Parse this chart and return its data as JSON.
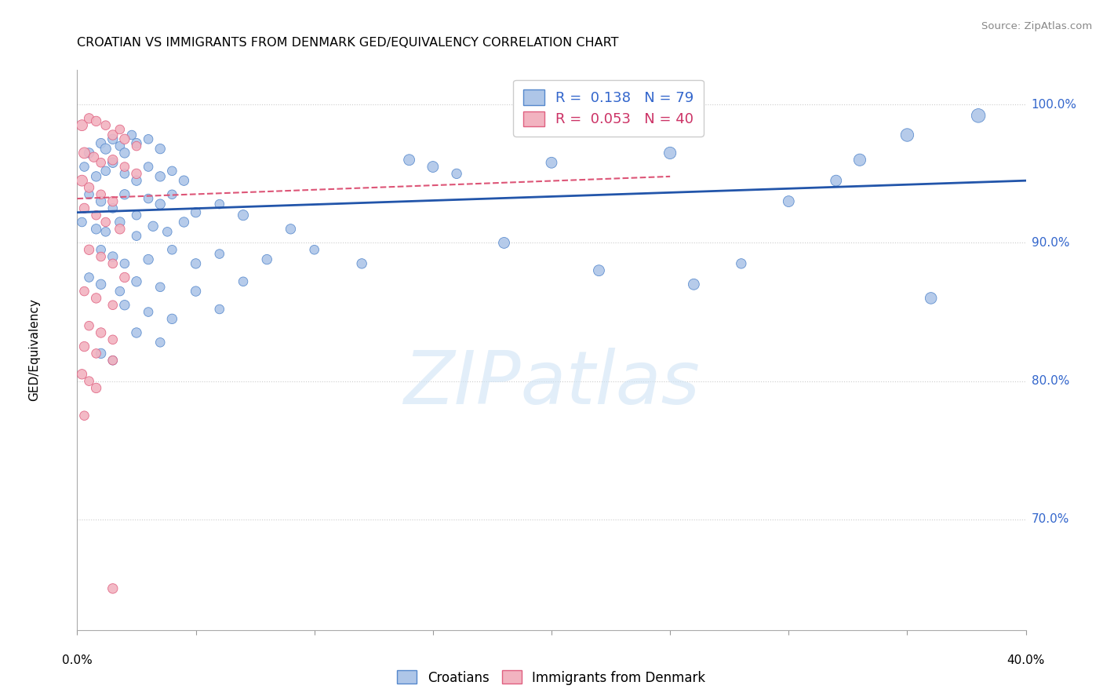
{
  "title": "CROATIAN VS IMMIGRANTS FROM DENMARK GED/EQUIVALENCY CORRELATION CHART",
  "source": "Source: ZipAtlas.com",
  "ylabel": "GED/Equivalency",
  "watermark": "ZIPatlas",
  "legend_blue_r": "0.138",
  "legend_blue_n": "79",
  "legend_pink_r": "0.053",
  "legend_pink_n": "40",
  "blue_fill": "#aec6e8",
  "pink_fill": "#f2b3c0",
  "blue_edge": "#5588cc",
  "pink_edge": "#e06080",
  "blue_line_color": "#2255aa",
  "pink_line_color": "#dd5577",
  "blue_scatter": [
    [
      0.5,
      96.5
    ],
    [
      1.0,
      97.2
    ],
    [
      1.2,
      96.8
    ],
    [
      1.5,
      97.5
    ],
    [
      1.8,
      97.0
    ],
    [
      2.0,
      96.5
    ],
    [
      2.3,
      97.8
    ],
    [
      2.5,
      97.2
    ],
    [
      3.0,
      97.5
    ],
    [
      3.5,
      96.8
    ],
    [
      0.3,
      95.5
    ],
    [
      0.8,
      94.8
    ],
    [
      1.2,
      95.2
    ],
    [
      1.5,
      95.8
    ],
    [
      2.0,
      95.0
    ],
    [
      2.5,
      94.5
    ],
    [
      3.0,
      95.5
    ],
    [
      3.5,
      94.8
    ],
    [
      4.0,
      95.2
    ],
    [
      4.5,
      94.5
    ],
    [
      0.5,
      93.5
    ],
    [
      1.0,
      93.0
    ],
    [
      1.5,
      92.5
    ],
    [
      2.0,
      93.5
    ],
    [
      2.5,
      92.0
    ],
    [
      3.0,
      93.2
    ],
    [
      3.5,
      92.8
    ],
    [
      4.0,
      93.5
    ],
    [
      5.0,
      92.2
    ],
    [
      6.0,
      92.8
    ],
    [
      0.2,
      91.5
    ],
    [
      0.8,
      91.0
    ],
    [
      1.2,
      90.8
    ],
    [
      1.8,
      91.5
    ],
    [
      2.5,
      90.5
    ],
    [
      3.2,
      91.2
    ],
    [
      3.8,
      90.8
    ],
    [
      4.5,
      91.5
    ],
    [
      7.0,
      92.0
    ],
    [
      9.0,
      91.0
    ],
    [
      1.0,
      89.5
    ],
    [
      1.5,
      89.0
    ],
    [
      2.0,
      88.5
    ],
    [
      3.0,
      88.8
    ],
    [
      4.0,
      89.5
    ],
    [
      5.0,
      88.5
    ],
    [
      6.0,
      89.2
    ],
    [
      8.0,
      88.8
    ],
    [
      10.0,
      89.5
    ],
    [
      12.0,
      88.5
    ],
    [
      0.5,
      87.5
    ],
    [
      1.0,
      87.0
    ],
    [
      1.8,
      86.5
    ],
    [
      2.5,
      87.2
    ],
    [
      3.5,
      86.8
    ],
    [
      5.0,
      86.5
    ],
    [
      7.0,
      87.2
    ],
    [
      2.0,
      85.5
    ],
    [
      3.0,
      85.0
    ],
    [
      4.0,
      84.5
    ],
    [
      6.0,
      85.2
    ],
    [
      2.5,
      83.5
    ],
    [
      3.5,
      82.8
    ],
    [
      1.0,
      82.0
    ],
    [
      1.5,
      81.5
    ],
    [
      15.0,
      95.5
    ],
    [
      20.0,
      95.8
    ],
    [
      25.0,
      96.5
    ],
    [
      30.0,
      93.0
    ],
    [
      32.0,
      94.5
    ],
    [
      33.0,
      96.0
    ],
    [
      35.0,
      97.8
    ],
    [
      38.0,
      99.2
    ],
    [
      18.0,
      90.0
    ],
    [
      22.0,
      88.0
    ],
    [
      26.0,
      87.0
    ],
    [
      28.0,
      88.5
    ],
    [
      36.0,
      86.0
    ],
    [
      14.0,
      96.0
    ],
    [
      16.0,
      95.0
    ]
  ],
  "pink_scatter": [
    [
      0.2,
      98.5
    ],
    [
      0.5,
      99.0
    ],
    [
      0.8,
      98.8
    ],
    [
      1.2,
      98.5
    ],
    [
      1.5,
      97.8
    ],
    [
      1.8,
      98.2
    ],
    [
      2.0,
      97.5
    ],
    [
      2.5,
      97.0
    ],
    [
      0.3,
      96.5
    ],
    [
      0.7,
      96.2
    ],
    [
      1.0,
      95.8
    ],
    [
      1.5,
      96.0
    ],
    [
      2.0,
      95.5
    ],
    [
      2.5,
      95.0
    ],
    [
      0.2,
      94.5
    ],
    [
      0.5,
      94.0
    ],
    [
      1.0,
      93.5
    ],
    [
      1.5,
      93.0
    ],
    [
      0.3,
      92.5
    ],
    [
      0.8,
      92.0
    ],
    [
      1.2,
      91.5
    ],
    [
      1.8,
      91.0
    ],
    [
      0.5,
      89.5
    ],
    [
      1.0,
      89.0
    ],
    [
      1.5,
      88.5
    ],
    [
      2.0,
      87.5
    ],
    [
      0.3,
      86.5
    ],
    [
      0.8,
      86.0
    ],
    [
      1.5,
      85.5
    ],
    [
      0.5,
      84.0
    ],
    [
      1.0,
      83.5
    ],
    [
      1.5,
      83.0
    ],
    [
      0.3,
      82.5
    ],
    [
      0.8,
      82.0
    ],
    [
      1.5,
      81.5
    ],
    [
      0.2,
      80.5
    ],
    [
      0.5,
      80.0
    ],
    [
      0.8,
      79.5
    ],
    [
      0.3,
      77.5
    ],
    [
      1.5,
      65.0
    ]
  ],
  "blue_sizes": [
    80,
    80,
    90,
    80,
    70,
    80,
    70,
    80,
    70,
    80,
    70,
    80,
    70,
    80,
    70,
    80,
    70,
    80,
    70,
    80,
    70,
    80,
    70,
    80,
    70,
    70,
    80,
    70,
    80,
    70,
    70,
    80,
    70,
    80,
    70,
    80,
    70,
    80,
    90,
    80,
    70,
    80,
    70,
    80,
    70,
    80,
    70,
    80,
    70,
    80,
    70,
    80,
    70,
    80,
    70,
    80,
    70,
    80,
    70,
    80,
    70,
    80,
    70,
    80,
    70,
    100,
    100,
    120,
    100,
    100,
    120,
    140,
    160,
    100,
    100,
    100,
    80,
    110,
    100,
    80
  ],
  "pink_sizes": [
    100,
    80,
    80,
    70,
    80,
    70,
    80,
    70,
    100,
    80,
    70,
    80,
    70,
    80,
    100,
    80,
    70,
    80,
    80,
    70,
    70,
    80,
    80,
    70,
    70,
    80,
    70,
    80,
    70,
    70,
    80,
    70,
    80,
    70,
    70,
    80,
    70,
    80,
    70,
    80
  ],
  "xlim": [
    0.0,
    40.0
  ],
  "ylim": [
    62.0,
    102.5
  ],
  "blue_line_x": [
    0.0,
    40.0
  ],
  "blue_line_y": [
    92.2,
    94.5
  ],
  "pink_line_x": [
    0.0,
    25.0
  ],
  "pink_line_y": [
    93.2,
    94.8
  ],
  "ytick_vals": [
    70,
    80,
    90,
    100
  ],
  "xtick_vals": [
    0,
    5,
    10,
    15,
    20,
    25,
    30,
    35,
    40
  ]
}
